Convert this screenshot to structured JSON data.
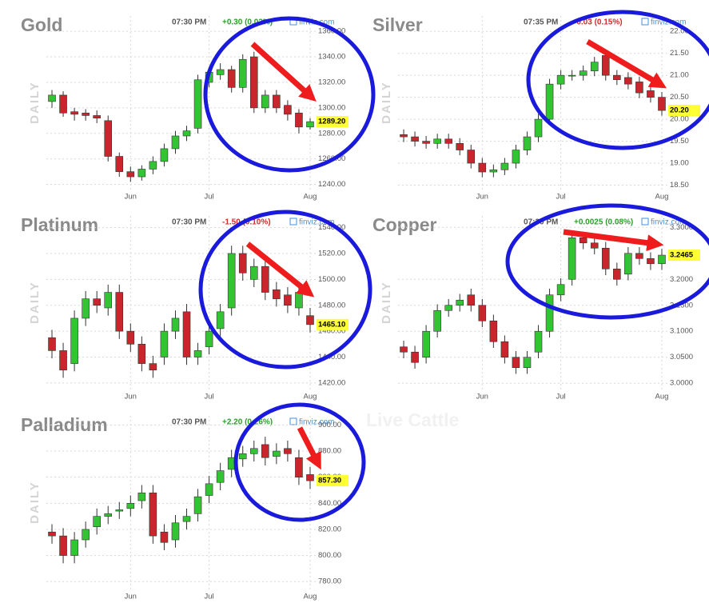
{
  "faded_title": "Live Cattle",
  "chart_data": [
    {
      "type": "candlestick",
      "title": "Gold",
      "time": "07:30 PM",
      "change": "+0.30 (0.02%)",
      "change_color": "#2aa12a",
      "source": "finviz.com",
      "ylabel": "DAILY",
      "categories": [
        null,
        null,
        null,
        null,
        null,
        null,
        null,
        "Jun",
        null,
        null,
        null,
        null,
        null,
        null,
        "Jul",
        null,
        null,
        null,
        null,
        null,
        null,
        null,
        null,
        "Aug"
      ],
      "open": [
        1305,
        1310,
        1297,
        1296,
        1294,
        1290,
        1262,
        1250,
        1246,
        1252,
        1258,
        1268,
        1278,
        1284,
        1320,
        1326,
        1330,
        1316,
        1340,
        1300,
        1310,
        1302,
        1296,
        1285
      ],
      "high": [
        1314,
        1313,
        1300,
        1299,
        1298,
        1294,
        1265,
        1254,
        1255,
        1262,
        1272,
        1282,
        1286,
        1326,
        1332,
        1335,
        1333,
        1342,
        1344,
        1314,
        1314,
        1306,
        1299,
        1292
      ],
      "low": [
        1300,
        1293,
        1290,
        1290,
        1288,
        1258,
        1246,
        1242,
        1243,
        1248,
        1254,
        1264,
        1274,
        1280,
        1316,
        1322,
        1312,
        1312,
        1296,
        1296,
        1296,
        1290,
        1280,
        1283
      ],
      "close": [
        1310,
        1296,
        1295,
        1294,
        1292,
        1262,
        1250,
        1246,
        1252,
        1258,
        1268,
        1278,
        1282,
        1322,
        1328,
        1330,
        1316,
        1338,
        1300,
        1310,
        1300,
        1295,
        1285,
        1289.2
      ],
      "up_color": "#33c433",
      "down_color": "#c8262c",
      "last_price": {
        "value": 1289.2,
        "label": "1289.20"
      },
      "ylim": [
        1236,
        1372
      ],
      "yticks": [
        {
          "value": 1240,
          "label": "1240.00"
        },
        {
          "value": 1260,
          "label": "1260.00"
        },
        {
          "value": 1280,
          "label": "1280.00"
        },
        {
          "value": 1300,
          "label": "1300.00"
        },
        {
          "value": 1320,
          "label": "1320.00"
        },
        {
          "value": 1340,
          "label": "1340.00"
        },
        {
          "value": 1360,
          "label": "1360.00"
        }
      ],
      "grid": true
    },
    {
      "type": "candlestick",
      "title": "Silver",
      "time": "07:35 PM",
      "change": "-0.03 (0.15%)",
      "change_color": "#d42a2a",
      "source": "finviz.com",
      "ylabel": "DAILY",
      "categories": [
        null,
        null,
        null,
        null,
        null,
        null,
        null,
        "Jun",
        null,
        null,
        null,
        null,
        null,
        null,
        "Jul",
        null,
        null,
        null,
        null,
        null,
        null,
        null,
        null,
        "Aug"
      ],
      "open": [
        19.65,
        19.6,
        19.5,
        19.45,
        19.55,
        19.45,
        19.3,
        19.0,
        18.8,
        18.85,
        19.0,
        19.3,
        19.6,
        20.0,
        20.8,
        21.0,
        21.0,
        21.1,
        21.45,
        21.0,
        20.95,
        20.85,
        20.65,
        20.5
      ],
      "high": [
        19.77,
        19.72,
        19.62,
        19.67,
        19.67,
        19.57,
        19.42,
        19.12,
        18.97,
        19.12,
        19.42,
        19.72,
        20.12,
        20.92,
        21.12,
        21.12,
        21.22,
        21.42,
        21.57,
        21.12,
        21.07,
        20.97,
        20.77,
        20.62
      ],
      "low": [
        19.48,
        19.38,
        19.33,
        19.33,
        19.33,
        19.18,
        18.88,
        18.68,
        18.68,
        18.73,
        18.88,
        19.18,
        19.48,
        19.88,
        20.68,
        20.88,
        20.88,
        20.98,
        20.88,
        20.78,
        20.68,
        20.48,
        20.38,
        20.08
      ],
      "close": [
        19.6,
        19.5,
        19.45,
        19.55,
        19.45,
        19.3,
        19.0,
        18.8,
        18.85,
        19.0,
        19.3,
        19.6,
        20.0,
        20.8,
        21.0,
        21.0,
        21.1,
        21.3,
        21.0,
        20.9,
        20.8,
        20.6,
        20.5,
        20.2
      ],
      "up_color": "#33c433",
      "down_color": "#c8262c",
      "last_price": {
        "value": 20.2,
        "label": "20.20"
      },
      "ylim": [
        18.4,
        22.35
      ],
      "yticks": [
        {
          "value": 18.5,
          "label": "18.50"
        },
        {
          "value": 19,
          "label": "19.00"
        },
        {
          "value": 19.5,
          "label": "19.50"
        },
        {
          "value": 20,
          "label": "20.00"
        },
        {
          "value": 20.5,
          "label": "20.50"
        },
        {
          "value": 21,
          "label": "21.00"
        },
        {
          "value": 21.5,
          "label": "21.50"
        },
        {
          "value": 22,
          "label": "22.00"
        }
      ],
      "grid": true
    },
    {
      "type": "candlestick",
      "title": "Platinum",
      "time": "07:30 PM",
      "change": "-1.50 (0.10%)",
      "change_color": "#d42a2a",
      "source": "finviz.com",
      "ylabel": "DAILY",
      "categories": [
        null,
        null,
        null,
        null,
        null,
        null,
        null,
        "Jun",
        null,
        null,
        null,
        null,
        null,
        null,
        "Jul",
        null,
        null,
        null,
        null,
        null,
        null,
        null,
        null,
        "Aug"
      ],
      "open": [
        1455,
        1445,
        1435,
        1470,
        1485,
        1478,
        1490,
        1460,
        1450,
        1435,
        1440,
        1460,
        1475,
        1440,
        1448,
        1462,
        1478,
        1520,
        1500,
        1510,
        1492,
        1488,
        1478,
        1472
      ],
      "high": [
        1461,
        1451,
        1476,
        1491,
        1491,
        1496,
        1496,
        1466,
        1456,
        1441,
        1466,
        1476,
        1481,
        1451,
        1466,
        1481,
        1526,
        1526,
        1516,
        1516,
        1498,
        1494,
        1496,
        1478
      ],
      "low": [
        1439,
        1424,
        1429,
        1464,
        1474,
        1472,
        1454,
        1444,
        1429,
        1424,
        1434,
        1454,
        1434,
        1434,
        1442,
        1456,
        1472,
        1499,
        1494,
        1484,
        1479,
        1474,
        1472,
        1459
      ],
      "close": [
        1445,
        1430,
        1470,
        1485,
        1480,
        1490,
        1460,
        1450,
        1435,
        1430,
        1460,
        1470,
        1440,
        1445,
        1460,
        1475,
        1520,
        1505,
        1510,
        1490,
        1485,
        1480,
        1490,
        1465.1
      ],
      "up_color": "#33c433",
      "down_color": "#c8262c",
      "last_price": {
        "value": 1465.1,
        "label": "1465.10"
      },
      "ylim": [
        1415,
        1549
      ],
      "yticks": [
        {
          "value": 1420,
          "label": "1420.00"
        },
        {
          "value": 1440,
          "label": "1440.00"
        },
        {
          "value": 1460,
          "label": "1460.00"
        },
        {
          "value": 1480,
          "label": "1480.00"
        },
        {
          "value": 1500,
          "label": "1500.00"
        },
        {
          "value": 1520,
          "label": "1520.00"
        },
        {
          "value": 1540,
          "label": "1540.00"
        }
      ],
      "grid": true
    },
    {
      "type": "candlestick",
      "title": "Copper",
      "time": "07:30 PM",
      "change": "+0.0025 (0.08%)",
      "change_color": "#2aa12a",
      "source": "finviz.com",
      "ylabel": "DAILY",
      "categories": [
        null,
        null,
        null,
        null,
        null,
        null,
        null,
        "Jun",
        null,
        null,
        null,
        null,
        null,
        null,
        "Jul",
        null,
        null,
        null,
        null,
        null,
        null,
        null,
        null,
        "Aug"
      ],
      "open": [
        3.07,
        3.06,
        3.05,
        3.1,
        3.14,
        3.15,
        3.17,
        3.15,
        3.12,
        3.08,
        3.05,
        3.03,
        3.06,
        3.1,
        3.17,
        3.2,
        3.28,
        3.27,
        3.26,
        3.22,
        3.21,
        3.25,
        3.24,
        3.23
      ],
      "high": [
        3.082,
        3.072,
        3.112,
        3.152,
        3.162,
        3.172,
        3.182,
        3.162,
        3.132,
        3.092,
        3.062,
        3.062,
        3.112,
        3.182,
        3.202,
        3.292,
        3.292,
        3.282,
        3.272,
        3.232,
        3.262,
        3.262,
        3.252,
        3.2585
      ],
      "low": [
        3.048,
        3.028,
        3.038,
        3.088,
        3.128,
        3.138,
        3.138,
        3.108,
        3.068,
        3.038,
        3.018,
        3.018,
        3.048,
        3.088,
        3.158,
        3.188,
        3.258,
        3.248,
        3.208,
        3.188,
        3.198,
        3.228,
        3.218,
        3.218
      ],
      "close": [
        3.06,
        3.04,
        3.1,
        3.14,
        3.15,
        3.16,
        3.15,
        3.12,
        3.08,
        3.05,
        3.03,
        3.05,
        3.1,
        3.17,
        3.19,
        3.28,
        3.27,
        3.26,
        3.22,
        3.2,
        3.25,
        3.24,
        3.23,
        3.2465
      ],
      "up_color": "#33c433",
      "down_color": "#c8262c",
      "last_price": {
        "value": 3.2465,
        "label": "3.2465"
      },
      "ylim": [
        2.988,
        3.322
      ],
      "yticks": [
        {
          "value": 3,
          "label": "3.0000"
        },
        {
          "value": 3.05,
          "label": "3.0500"
        },
        {
          "value": 3.1,
          "label": "3.1000"
        },
        {
          "value": 3.15,
          "label": "3.1500"
        },
        {
          "value": 3.2,
          "label": "3.2000"
        },
        {
          "value": 3.3,
          "label": "3.3000"
        }
      ],
      "grid": true
    },
    {
      "type": "candlestick",
      "title": "Palladium",
      "time": "07:30 PM",
      "change": "+2.20 (0.26%)",
      "change_color": "#2aa12a",
      "source": "finviz.com",
      "ylabel": "DAILY",
      "categories": [
        null,
        null,
        null,
        null,
        null,
        null,
        null,
        "Jun",
        null,
        null,
        null,
        null,
        null,
        null,
        "Jul",
        null,
        null,
        null,
        null,
        null,
        null,
        null,
        null,
        "Aug"
      ],
      "open": [
        818,
        815,
        800,
        812,
        822,
        830,
        834,
        836,
        842,
        848,
        818,
        812,
        826,
        832,
        846,
        856,
        866,
        874,
        878,
        885,
        876,
        882,
        875,
        862
      ],
      "high": [
        824,
        821,
        818,
        826,
        836,
        838,
        841,
        846,
        854,
        854,
        824,
        831,
        836,
        851,
        861,
        871,
        881,
        884,
        888,
        891,
        886,
        888,
        881,
        868
      ],
      "low": [
        809,
        794,
        794,
        806,
        816,
        824,
        828,
        830,
        836,
        809,
        804,
        806,
        820,
        826,
        840,
        850,
        860,
        868,
        872,
        869,
        870,
        872,
        854,
        851
      ],
      "close": [
        815,
        800,
        812,
        820,
        830,
        832,
        835,
        840,
        848,
        815,
        810,
        825,
        830,
        845,
        855,
        865,
        875,
        878,
        882,
        875,
        880,
        878,
        860,
        857.3
      ],
      "up_color": "#33c433",
      "down_color": "#c8262c",
      "last_price": {
        "value": 857.3,
        "label": "857.30"
      },
      "ylim": [
        774,
        907
      ],
      "yticks": [
        {
          "value": 780,
          "label": "780.00"
        },
        {
          "value": 800,
          "label": "800.00"
        },
        {
          "value": 820,
          "label": "820.00"
        },
        {
          "value": 840,
          "label": "840.00"
        },
        {
          "value": 860,
          "label": "860.00"
        },
        {
          "value": 880,
          "label": "880.00"
        },
        {
          "value": 900,
          "label": "900.00"
        }
      ],
      "grid": true
    }
  ]
}
